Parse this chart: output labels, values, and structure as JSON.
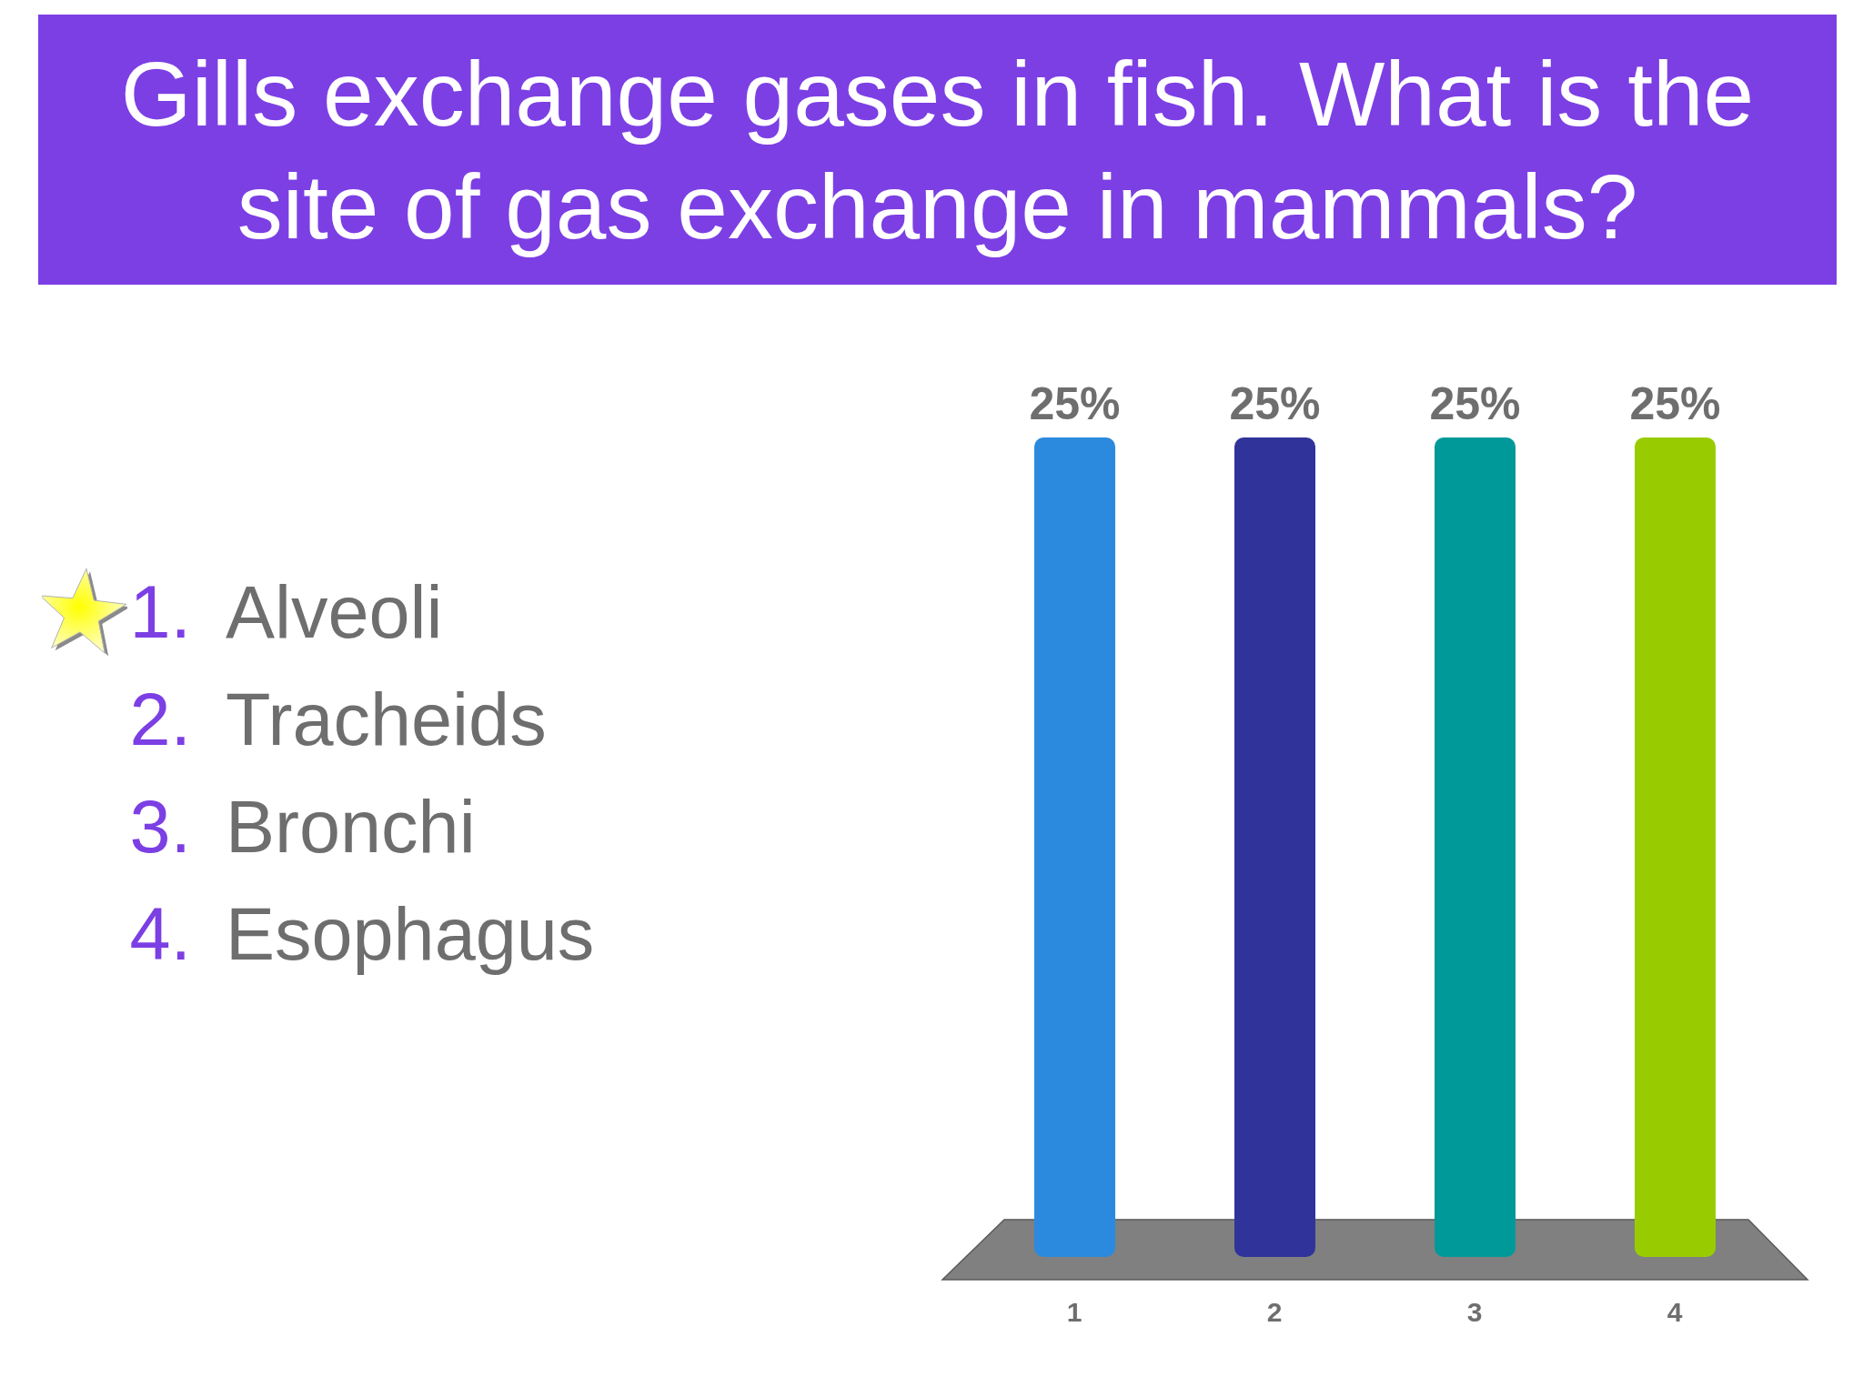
{
  "chart_data": {
    "type": "bar",
    "title": "Gills exchange gases in fish. What is the site of gas exchange in mammals?",
    "categories": [
      "1",
      "2",
      "3",
      "4"
    ],
    "values": [
      25,
      25,
      25,
      25
    ],
    "colors": [
      "#2b8ade",
      "#30339a",
      "#00999a",
      "#99cc00"
    ],
    "value_labels": [
      "25%",
      "25%",
      "25%",
      "25%"
    ],
    "annotations": [
      "1. Alveoli",
      "2. Tracheids",
      "3. Bronchi",
      "4. Esophagus"
    ]
  }
}
